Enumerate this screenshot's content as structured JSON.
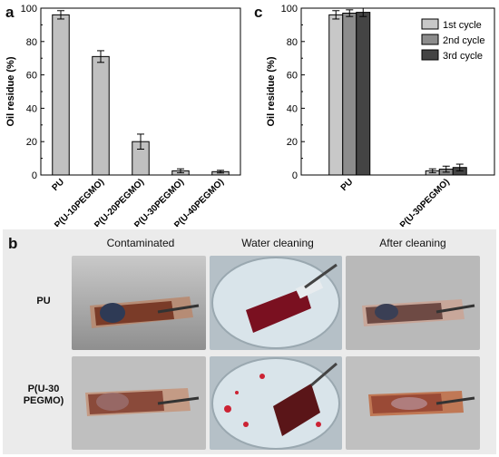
{
  "panel_labels": {
    "a": "a",
    "b": "b",
    "c": "c"
  },
  "chart_data": [
    {
      "type": "bar",
      "panel": "a",
      "categories": [
        "PU",
        "P(U-10PEGMO)",
        "P(U-20PEGMO)",
        "P(U-30PEGMO)",
        "P(U-40PEGMO)"
      ],
      "values": [
        96,
        71,
        20,
        2.5,
        2
      ],
      "errors": [
        2.5,
        3.5,
        4.5,
        1.2,
        0.8
      ],
      "title": "",
      "xlabel": "",
      "ylabel": "Oil residue (%)",
      "ylim": [
        0,
        100
      ],
      "yticks": [
        0,
        20,
        40,
        60,
        80,
        100
      ],
      "grid": false,
      "bar_color": "#c0c0c0"
    },
    {
      "type": "bar",
      "panel": "c",
      "categories": [
        "PU",
        "P(U-30PEGMO)"
      ],
      "series": [
        {
          "name": "1st cycle",
          "values": [
            96,
            2.5
          ],
          "errors": [
            2.5,
            1.2
          ],
          "color": "#c8c8c8"
        },
        {
          "name": "2nd cycle",
          "values": [
            97,
            3.5
          ],
          "errors": [
            2,
            1.8
          ],
          "color": "#8c8c8c"
        },
        {
          "name": "3rd cycle",
          "values": [
            97.5,
            4.5
          ],
          "errors": [
            2.5,
            2
          ],
          "color": "#444444"
        }
      ],
      "title": "",
      "xlabel": "",
      "ylabel": "Oil residue (%)",
      "ylim": [
        0,
        100
      ],
      "yticks": [
        0,
        20,
        40,
        60,
        80,
        100
      ],
      "grid": false,
      "legend_position": "top-right"
    }
  ],
  "panel_b": {
    "columns": [
      "Contaminated",
      "Water cleaning",
      "After cleaning"
    ],
    "rows": [
      {
        "line1": "PU",
        "line2": ""
      },
      {
        "line1": "P(U-30",
        "line2": "PEGMO)"
      }
    ]
  }
}
